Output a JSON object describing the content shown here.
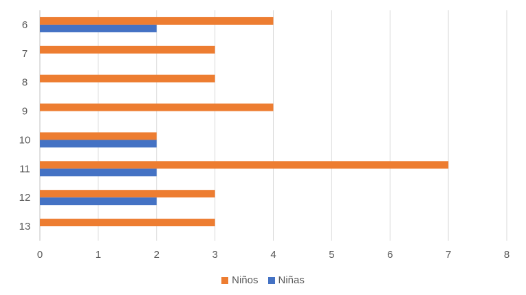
{
  "chart_data": {
    "type": "bar",
    "orientation": "horizontal",
    "categories": [
      "6",
      "7",
      "8",
      "9",
      "10",
      "11",
      "12",
      "13"
    ],
    "series": [
      {
        "name": "Niños",
        "color": "#ED7D31",
        "values": [
          4,
          3,
          3,
          4,
          2,
          7,
          3,
          3
        ]
      },
      {
        "name": "Niñas",
        "color": "#4472C4",
        "values": [
          2,
          0,
          0,
          0,
          2,
          2,
          2,
          0
        ]
      }
    ],
    "xlim": [
      0,
      8
    ],
    "xticks": [
      "0",
      "1",
      "2",
      "3",
      "4",
      "5",
      "6",
      "7",
      "8"
    ],
    "grid": true,
    "legend_position": "bottom"
  }
}
